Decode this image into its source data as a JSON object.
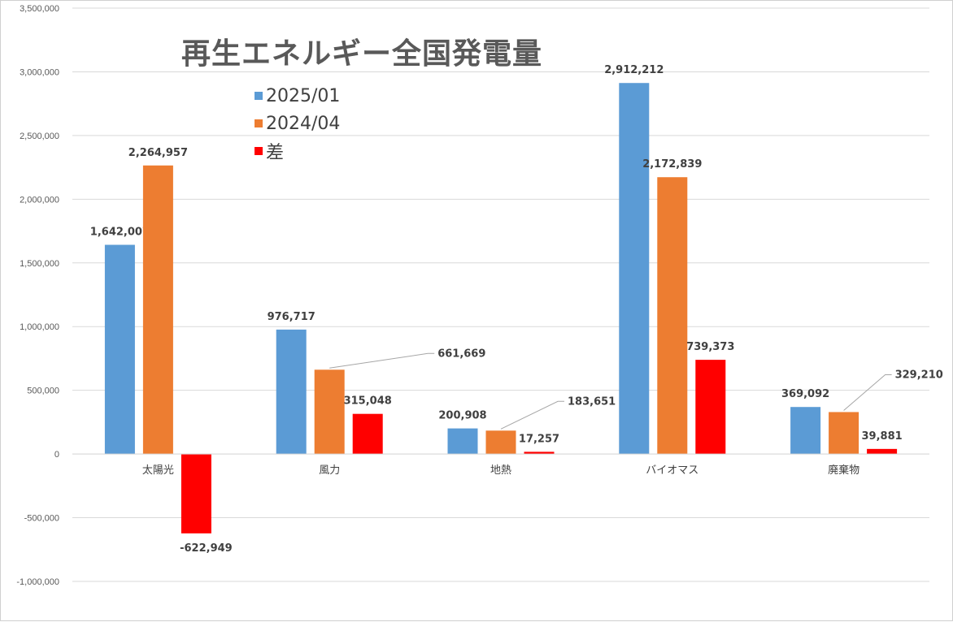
{
  "chart_data": {
    "type": "bar",
    "title": "再生エネルギー全国発電量",
    "xlabel": "",
    "ylabel": "",
    "categories": [
      "太陽光",
      "風力",
      "地熱",
      "バイオマス",
      "廃棄物"
    ],
    "series": [
      {
        "name": "2025/01",
        "color": "#5b9bd5",
        "values": [
          1642007,
          976717,
          200908,
          2912212,
          369092
        ],
        "labels": [
          "1,642,007",
          "976,717",
          "200,908",
          "2,912,212",
          "369,092"
        ]
      },
      {
        "name": "2024/04",
        "color": "#ed7d31",
        "values": [
          2264957,
          661669,
          183651,
          2172839,
          329210
        ],
        "labels": [
          "2,264,957",
          "661,669",
          "183,651",
          "2,172,839",
          "329,210"
        ]
      },
      {
        "name": "差",
        "color": "#ff0000",
        "values": [
          -622949,
          315048,
          17257,
          739373,
          39881
        ],
        "labels": [
          "-622,949",
          "315,048",
          "17,257",
          "739,373",
          "39,881"
        ]
      }
    ],
    "ylim": [
      -1000000,
      3500000
    ],
    "yticks": [
      -1000000,
      -500000,
      0,
      500000,
      1000000,
      1500000,
      2000000,
      2500000,
      3000000,
      3500000
    ],
    "ytick_labels": [
      "-1,000,000",
      "-500,000",
      "0",
      "500,000",
      "1,000,000",
      "1,500,000",
      "2,000,000",
      "2,500,000",
      "3,000,000",
      "3,500,000"
    ],
    "grid": true,
    "legend_position": "top-left"
  }
}
